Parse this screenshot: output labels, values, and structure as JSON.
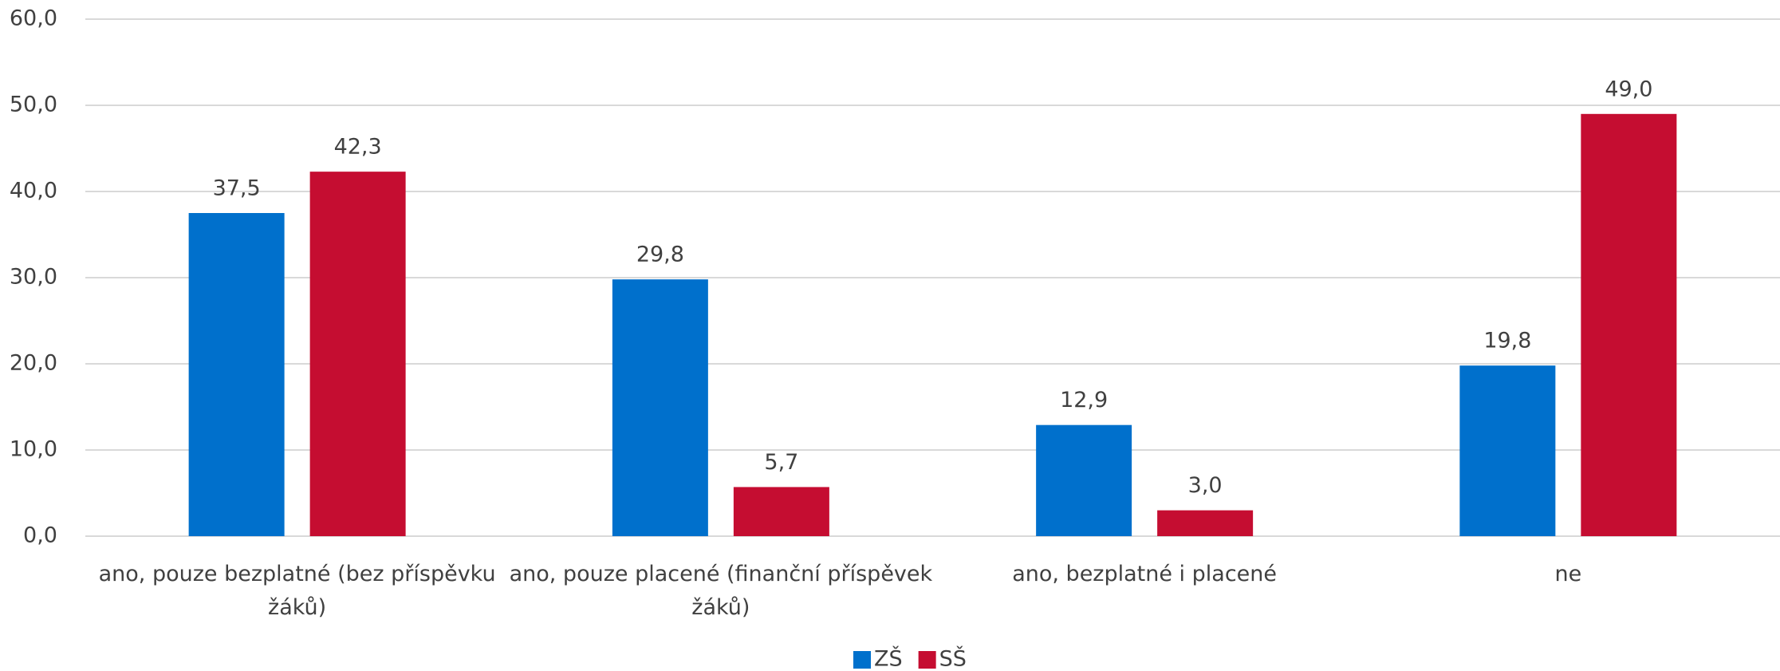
{
  "chart_data": {
    "type": "bar",
    "categories": [
      "ano, pouze bezplatné (bez příspěvku žáků)",
      "ano, pouze placené (finanční příspěvek žáků)",
      "ano, bezplatné i placené",
      "ne"
    ],
    "series": [
      {
        "name": "ZŠ",
        "color": "#0070cc",
        "values": [
          37.5,
          29.8,
          12.9,
          19.8
        ],
        "value_labels": [
          "37,5",
          "29,8",
          "12,9",
          "19,8"
        ]
      },
      {
        "name": "SŠ",
        "color": "#c50d31",
        "values": [
          42.3,
          5.7,
          3.0,
          49.0
        ],
        "value_labels": [
          "42,3",
          "5,7",
          "3,0",
          "49,0"
        ]
      }
    ],
    "ylim": [
      0,
      60
    ],
    "yticks": [
      {
        "value": 0,
        "label": "0,0"
      },
      {
        "value": 10,
        "label": "10,0"
      },
      {
        "value": 20,
        "label": "20,0"
      },
      {
        "value": 30,
        "label": "30,0"
      },
      {
        "value": 40,
        "label": "40,0"
      },
      {
        "value": 50,
        "label": "50,0"
      },
      {
        "value": 60,
        "label": "60,0"
      }
    ],
    "grid": true,
    "legend": "bottom"
  }
}
